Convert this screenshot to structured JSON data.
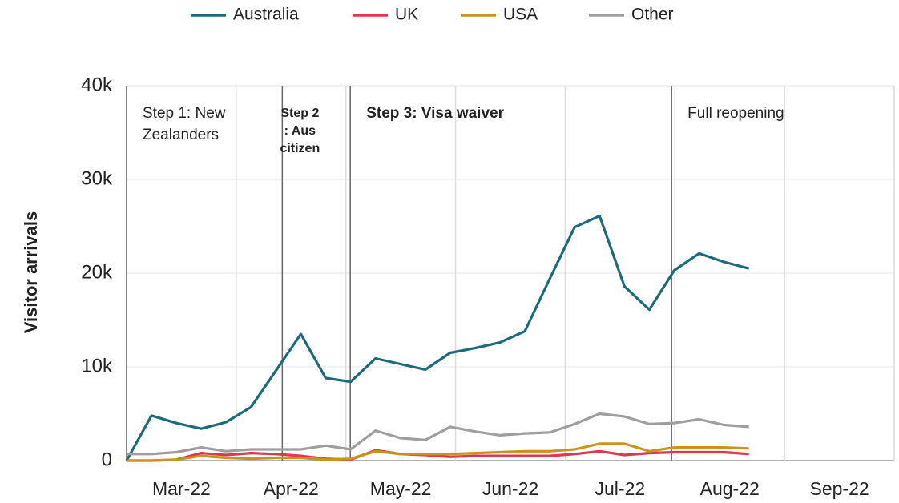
{
  "chart_data": {
    "type": "line",
    "y_label": "Visitor arrivals",
    "x": [
      0,
      0.227,
      0.454,
      0.681,
      0.908,
      1.135,
      1.362,
      1.589,
      1.816,
      2.043,
      2.27,
      2.497,
      2.724,
      2.951,
      3.178,
      3.405,
      3.632,
      3.859,
      4.086,
      4.313,
      4.54,
      4.767,
      4.994,
      5.221,
      5.448,
      5.675
    ],
    "series": [
      {
        "name": "Australia",
        "color": "#1d6a78",
        "values": [
          0,
          4800,
          4000,
          3400,
          4100,
          5700,
          9600,
          13500,
          8800,
          8400,
          10900,
          10300,
          9700,
          11500,
          12000,
          12600,
          13800,
          19400,
          24900,
          26100,
          18600,
          16100,
          20300,
          22100,
          21200,
          20500
        ]
      },
      {
        "name": "UK",
        "color": "#e0364f",
        "values": [
          0,
          0,
          100,
          800,
          600,
          800,
          700,
          500,
          200,
          100,
          1100,
          700,
          600,
          400,
          500,
          500,
          500,
          500,
          700,
          1000,
          600,
          800,
          900,
          900,
          900,
          700
        ]
      },
      {
        "name": "USA",
        "color": "#c8951a",
        "values": [
          0,
          0,
          100,
          500,
          300,
          200,
          300,
          300,
          100,
          200,
          1000,
          700,
          700,
          700,
          800,
          900,
          1000,
          1000,
          1200,
          1800,
          1800,
          1000,
          1400,
          1400,
          1400,
          1300
        ]
      },
      {
        "name": "Other",
        "color": "#9e9e9e",
        "values": [
          700,
          700,
          900,
          1400,
          1000,
          1200,
          1200,
          1200,
          1600,
          1200,
          3200,
          2400,
          2200,
          3600,
          3100,
          2700,
          2900,
          3000,
          3900,
          5000,
          4700,
          3900,
          4000,
          4400,
          3800,
          3600
        ]
      }
    ],
    "xlim": [
      0,
      7
    ],
    "xticks": [
      {
        "value": 0.5,
        "label": "Mar-22"
      },
      {
        "value": 1.5,
        "label": "Apr-22"
      },
      {
        "value": 2.5,
        "label": "May-22"
      },
      {
        "value": 3.5,
        "label": "Jun-22"
      },
      {
        "value": 4.5,
        "label": "Jul-22"
      },
      {
        "value": 5.5,
        "label": "Aug-22"
      },
      {
        "value": 6.5,
        "label": "Sep-22"
      }
    ],
    "ylim": [
      0,
      40000
    ],
    "yticks": [
      0,
      {
        "value": 10000,
        "label": "10k"
      },
      {
        "value": 20000,
        "label": "20k"
      },
      {
        "value": 30000,
        "label": "30k"
      },
      {
        "value": 40000,
        "label": "40k"
      }
    ],
    "grid": true,
    "legend": "top",
    "annotations": [
      {
        "x": 0,
        "text": [
          "Step 1: New",
          "Zealanders"
        ],
        "color": "#333333",
        "bold": false
      },
      {
        "x": 1.42,
        "text": [
          "Step 2",
          ": Aus",
          "citizen"
        ],
        "color": "#1d6a78",
        "bold": true
      },
      {
        "x": 2.04,
        "text": [
          "Step 3: Visa waiver"
        ],
        "color": "#1d6a78",
        "bold": true
      },
      {
        "x": 4.97,
        "text": [
          "Full reopening"
        ],
        "color": "#333333",
        "bold": false
      }
    ]
  }
}
